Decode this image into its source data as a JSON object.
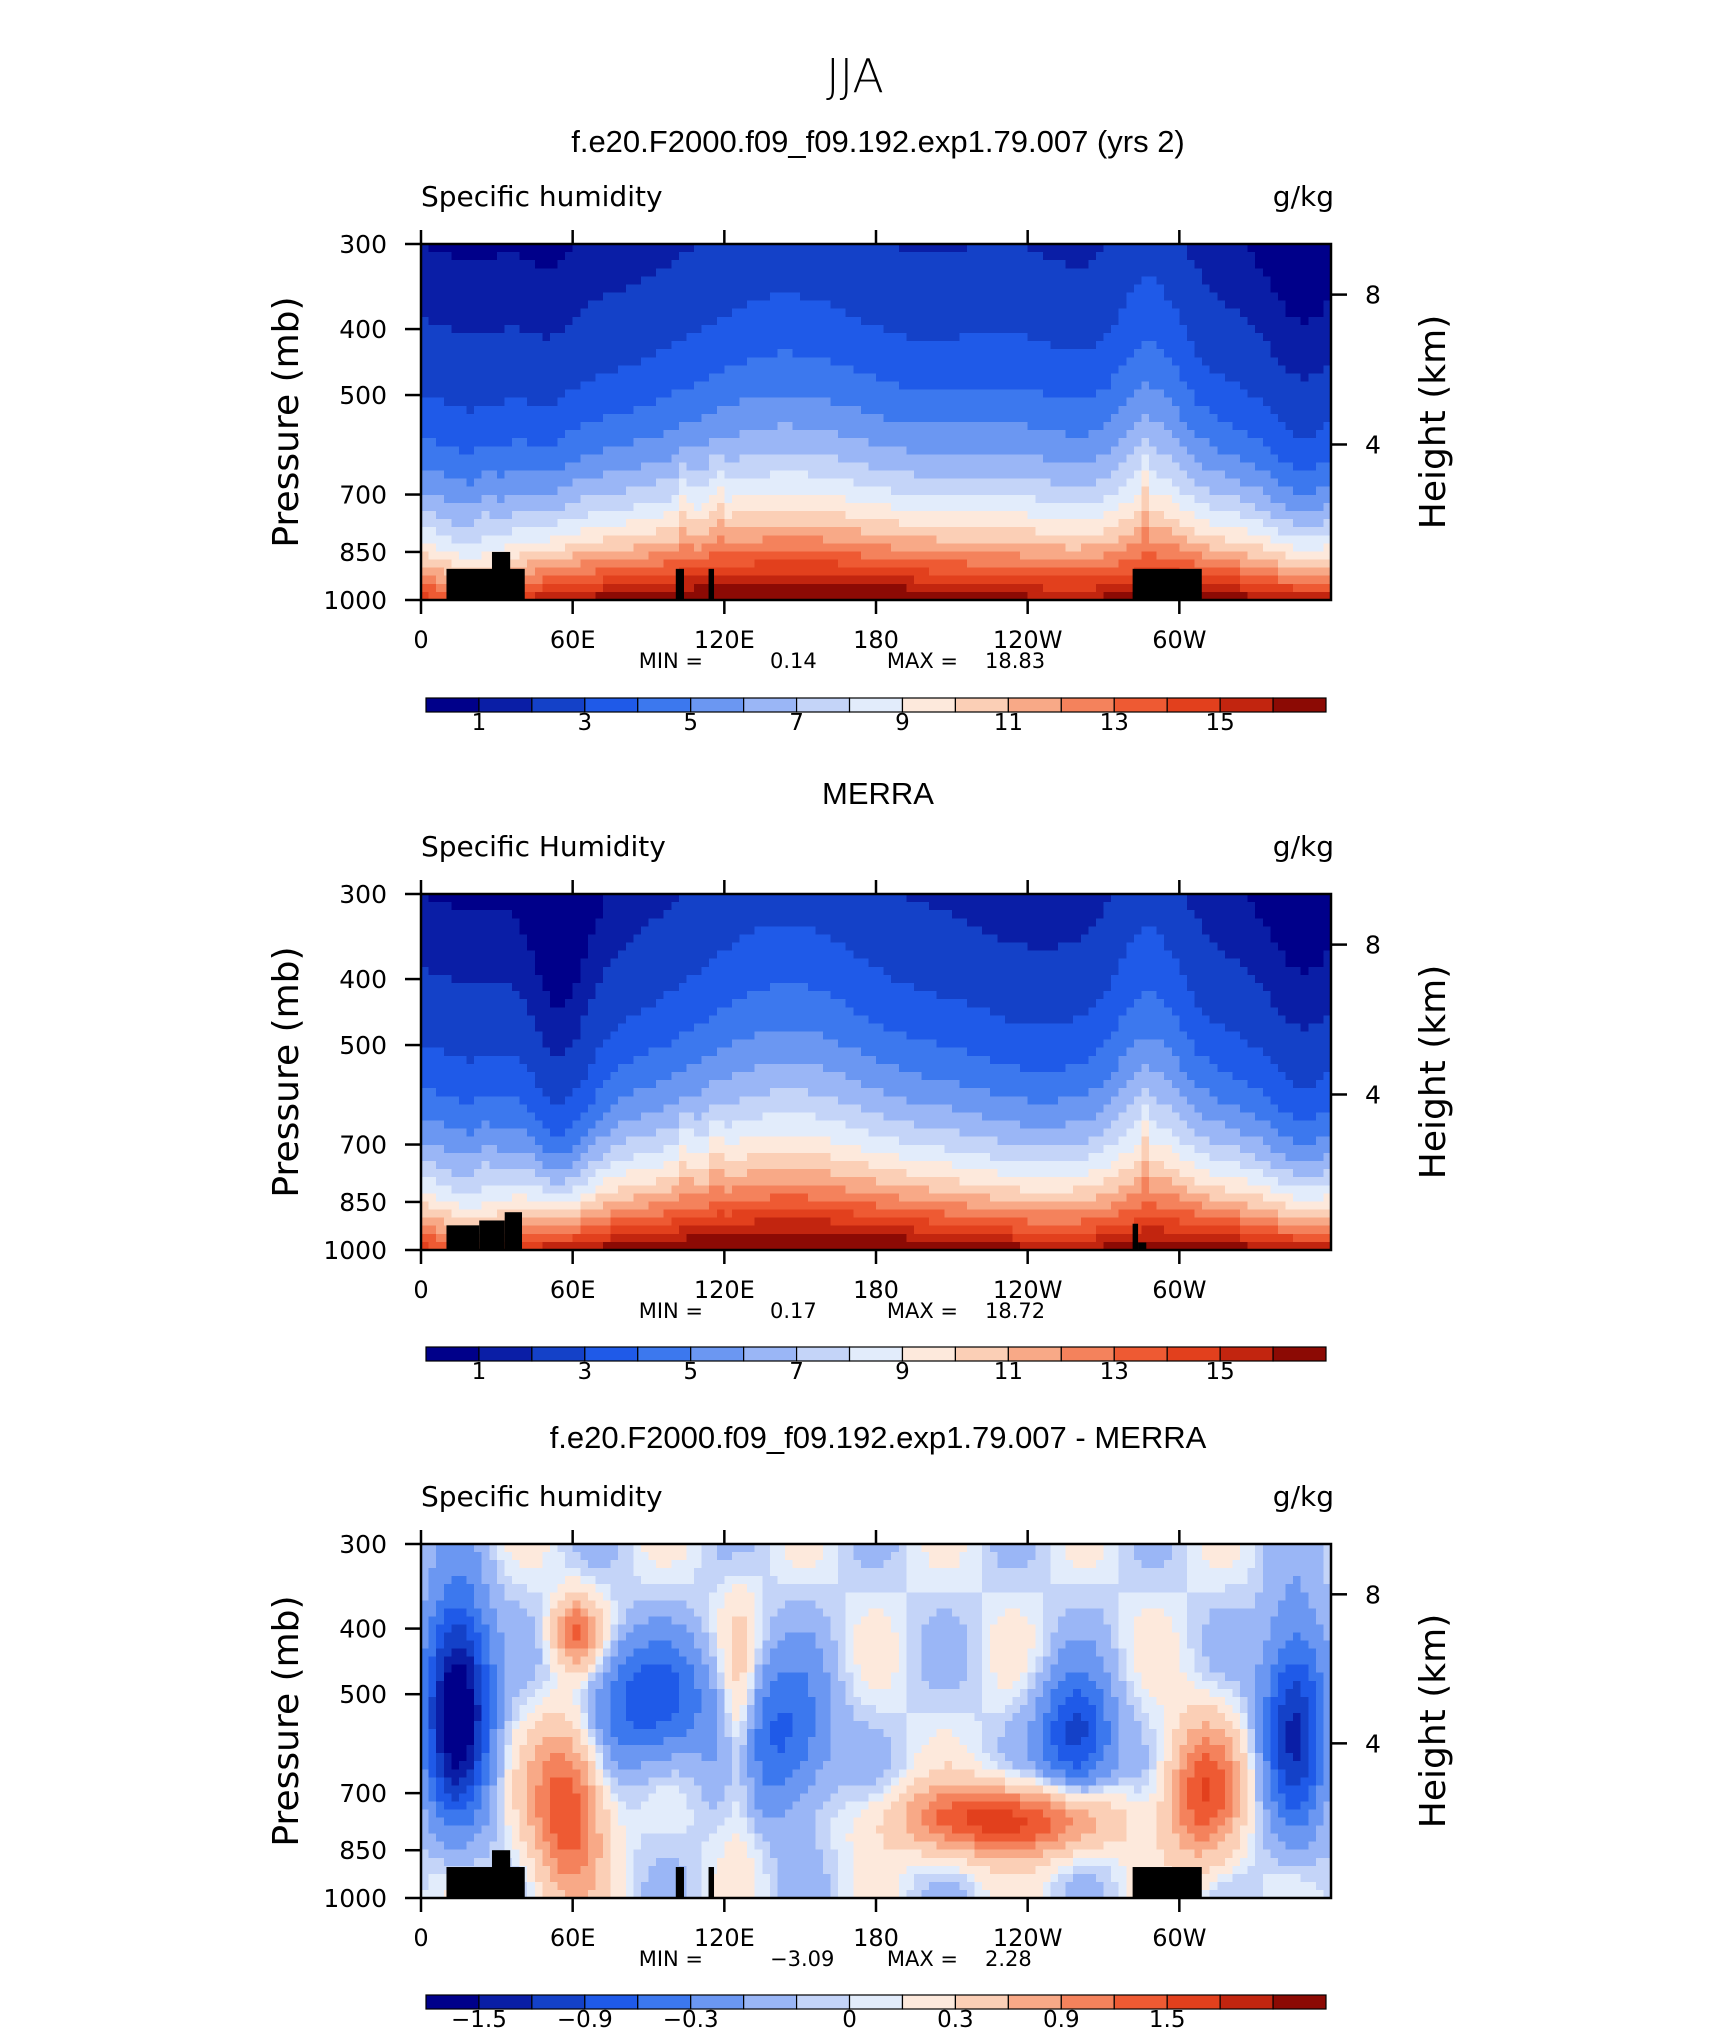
{
  "page": {
    "title": "JJA"
  },
  "colors": {
    "palette": [
      "#00008a",
      "#0a1ea6",
      "#1441c8",
      "#1f5ae8",
      "#3c78ee",
      "#6b97f2",
      "#9ab6f6",
      "#c4d4f8",
      "#e2ecfb",
      "#fde9dc",
      "#fbcfb6",
      "#f8a987",
      "#f4825c",
      "#ee5a33",
      "#e2401d",
      "#c2250f",
      "#8c0a04"
    ],
    "terrain": "#000000"
  },
  "chart_data": [
    {
      "type": "heatmap",
      "title": "f.e20.F2000.f09_f09.192.exp1.79.007 (yrs 2)",
      "left_string": "Specific humidity",
      "right_string": "g/kg",
      "ylabel": "Pressure (mb)",
      "ylabel_right": "Height (km)",
      "x_ticks": [
        "0",
        "60E",
        "120E",
        "180",
        "120W",
        "60W"
      ],
      "y_ticks": [
        "300",
        "400",
        "500",
        "700",
        "850",
        "1000"
      ],
      "y_right_ticks": [
        "8",
        "4"
      ],
      "min_label": "MIN =",
      "min_value": "0.14",
      "max_label": "MAX =",
      "max_value": "18.83",
      "colorbar_labels": [
        "1",
        "3",
        "5",
        "7",
        "9",
        "11",
        "13",
        "15"
      ],
      "levels": [
        0.5,
        1,
        2,
        3,
        4,
        5,
        6,
        7,
        8,
        9,
        10,
        11,
        12,
        13,
        14,
        15,
        16
      ]
    },
    {
      "type": "heatmap",
      "title": "MERRA",
      "left_string": "Specific Humidity",
      "right_string": "g/kg",
      "ylabel": "Pressure (mb)",
      "ylabel_right": "Height (km)",
      "x_ticks": [
        "0",
        "60E",
        "120E",
        "180",
        "120W",
        "60W"
      ],
      "y_ticks": [
        "300",
        "400",
        "500",
        "700",
        "850",
        "1000"
      ],
      "y_right_ticks": [
        "8",
        "4"
      ],
      "min_label": "MIN =",
      "min_value": "0.17",
      "max_label": "MAX =",
      "max_value": "18.72",
      "colorbar_labels": [
        "1",
        "3",
        "5",
        "7",
        "9",
        "11",
        "13",
        "15"
      ],
      "levels": [
        0.5,
        1,
        2,
        3,
        4,
        5,
        6,
        7,
        8,
        9,
        10,
        11,
        12,
        13,
        14,
        15,
        16
      ]
    },
    {
      "type": "heatmap",
      "title": "f.e20.F2000.f09_f09.192.exp1.79.007 - MERRA",
      "left_string": "Specific humidity",
      "right_string": "g/kg",
      "ylabel": "Pressure (mb)",
      "ylabel_right": "Height (km)",
      "x_ticks": [
        "0",
        "60E",
        "120E",
        "180",
        "120W",
        "60W"
      ],
      "y_ticks": [
        "300",
        "400",
        "500",
        "700",
        "850",
        "1000"
      ],
      "y_right_ticks": [
        "8",
        "4"
      ],
      "min_label": "MIN =",
      "min_value": "−3.09",
      "max_label": "MAX =",
      "max_value": "2.28",
      "colorbar_labels": [
        "−1.5",
        "−0.9",
        "−0.3",
        "0",
        "0.3",
        "0.9",
        "1.5"
      ],
      "levels": [
        -1.8,
        -1.5,
        -1.2,
        -0.9,
        -0.6,
        -0.3,
        -0.1,
        0,
        0.1,
        0.3,
        0.6,
        0.9,
        1.2,
        1.5,
        1.8,
        2.1
      ]
    }
  ]
}
